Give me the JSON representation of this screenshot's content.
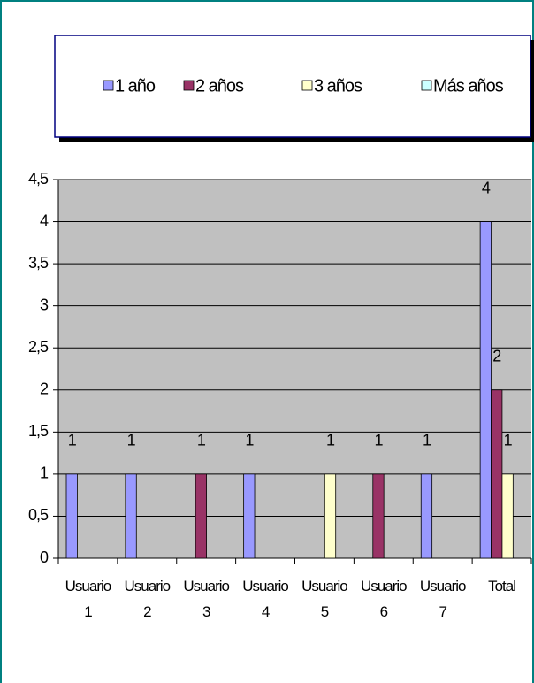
{
  "chart_data": {
    "type": "bar",
    "categories": [
      "Usuario 1",
      "Usuario 2",
      "Usuario 3",
      "Usuario 4",
      "Usuario 5",
      "Usuario 6",
      "Usuario 7",
      "Total"
    ],
    "series": [
      {
        "name": "1 año",
        "color": "#9999ff",
        "values": [
          1,
          1,
          null,
          1,
          null,
          null,
          1,
          4
        ]
      },
      {
        "name": "2 años",
        "color": "#993366",
        "values": [
          null,
          null,
          1,
          null,
          null,
          1,
          null,
          2
        ]
      },
      {
        "name": "3 años",
        "color": "#ffffcc",
        "values": [
          null,
          null,
          null,
          null,
          1,
          null,
          null,
          1
        ]
      },
      {
        "name": "Más años",
        "color": "#ccffff",
        "values": [
          null,
          null,
          null,
          null,
          null,
          null,
          null,
          null
        ]
      }
    ],
    "ylim": [
      0,
      4.5
    ],
    "yticks": [
      0,
      {
        "value": 0.5,
        "label": "0,5"
      },
      1,
      {
        "value": 1.5,
        "label": "1,5"
      },
      2,
      {
        "value": 2.5,
        "label": "2,5"
      },
      3,
      {
        "value": 3.5,
        "label": "3,5"
      },
      4,
      {
        "value": 4.5,
        "label": "4,5"
      }
    ],
    "grid": true,
    "legend": "top",
    "plot_background": "#c0c0c0"
  }
}
